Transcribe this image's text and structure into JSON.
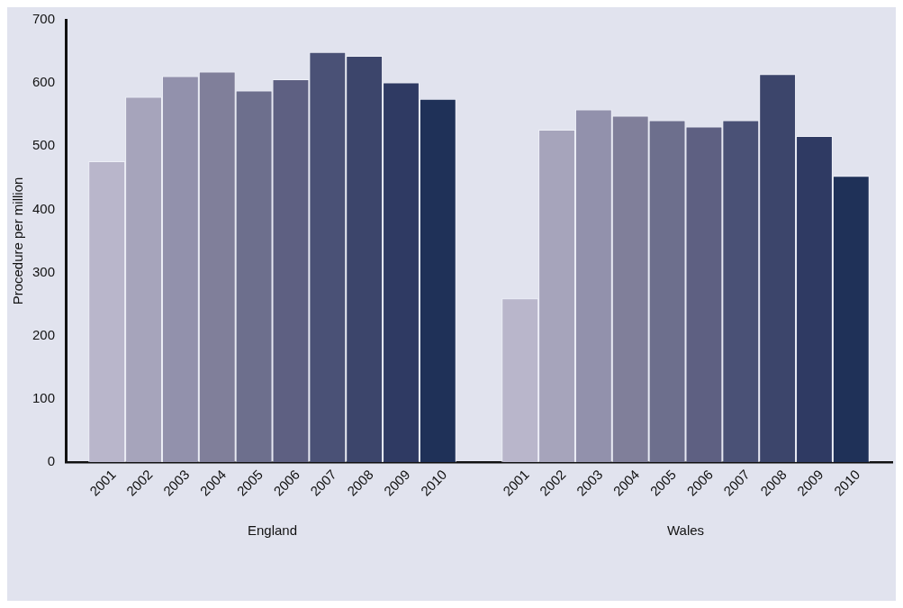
{
  "chart_data": {
    "type": "bar",
    "ylabel": "Procedure per million",
    "categories": [
      "England",
      "Wales"
    ],
    "series": [
      {
        "name": "2001",
        "color": "#b9b6cb",
        "values": [
          476,
          259
        ]
      },
      {
        "name": "2002",
        "color": "#a6a4bb",
        "values": [
          578,
          526
        ]
      },
      {
        "name": "2003",
        "color": "#9291ac",
        "values": [
          611,
          558
        ]
      },
      {
        "name": "2004",
        "color": "#807f9a",
        "values": [
          618,
          548
        ]
      },
      {
        "name": "2005",
        "color": "#6d6f8d",
        "values": [
          588,
          541
        ]
      },
      {
        "name": "2006",
        "color": "#5e6082",
        "values": [
          606,
          531
        ]
      },
      {
        "name": "2007",
        "color": "#4a5176",
        "values": [
          649,
          541
        ]
      },
      {
        "name": "2008",
        "color": "#3c456b",
        "values": [
          643,
          614
        ]
      },
      {
        "name": "2009",
        "color": "#2f3a63",
        "values": [
          601,
          516
        ]
      },
      {
        "name": "2010",
        "color": "#1f3158",
        "values": [
          575,
          453
        ]
      }
    ],
    "ylim": [
      0,
      700
    ],
    "yticks": [
      0,
      100,
      200,
      300,
      400,
      500,
      600,
      700
    ]
  }
}
